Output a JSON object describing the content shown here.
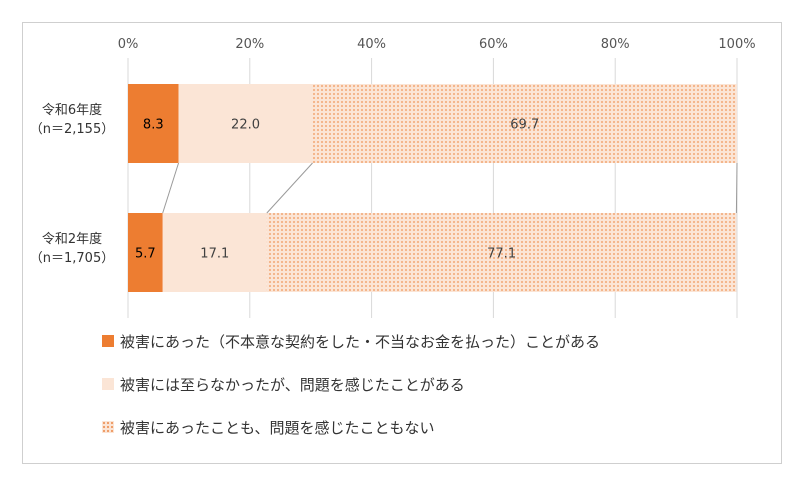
{
  "chart_data": {
    "type": "bar",
    "orientation": "horizontal",
    "stacked": true,
    "categories": [
      [
        "令和6年度",
        "（n＝2,155）"
      ],
      [
        "令和2年度",
        "（n＝1,705）"
      ]
    ],
    "series": [
      {
        "name": "被害にあった（不本意な契約をした・不当なお金を払った）ことがある",
        "values": [
          8.3,
          5.7
        ],
        "color": "#ed7d31"
      },
      {
        "name": "被害には至らなかったが、問題を感じたことがある",
        "values": [
          22.0,
          17.1
        ],
        "color": "#fbe5d6"
      },
      {
        "name": "被害にあったことも、問題を感じたこともない",
        "values": [
          69.7,
          77.1
        ],
        "color": "#f4b183"
      }
    ],
    "value_labels": [
      [
        "8.3",
        "5.7"
      ],
      [
        "22.0",
        "17.1"
      ],
      [
        "69.7",
        "77.1"
      ]
    ],
    "xlim": [
      0,
      100
    ],
    "xticks": [
      "0%",
      "20%",
      "40%",
      "60%",
      "80%",
      "100%"
    ],
    "series_lines": true,
    "legend_position": "bottom"
  }
}
